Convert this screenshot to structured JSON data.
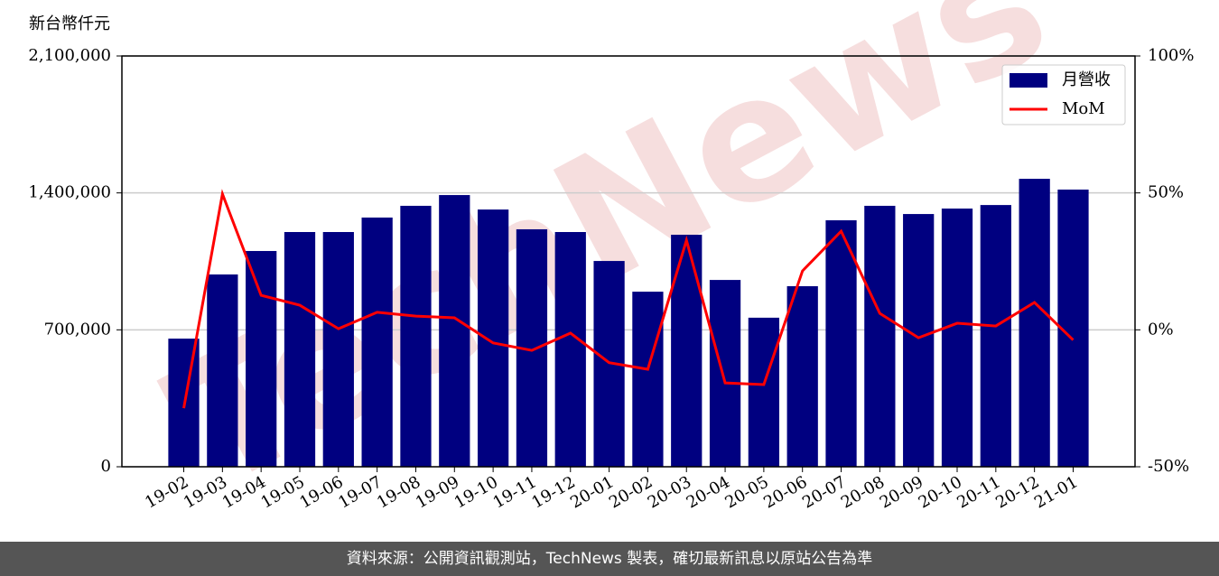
{
  "chart_data": {
    "type": "bar",
    "y_label": "新台幣仟元",
    "watermark": "TechNews",
    "source": "資料來源：公開資訊觀測站，TechNews 製表，確切最新訊息以原站公告為準",
    "categories": [
      "19-02",
      "19-03",
      "19-04",
      "19-05",
      "19-06",
      "19-07",
      "19-08",
      "19-09",
      "19-10",
      "19-11",
      "19-12",
      "20-01",
      "20-02",
      "20-03",
      "20-04",
      "20-05",
      "20-06",
      "20-07",
      "20-08",
      "20-09",
      "20-10",
      "20-11",
      "20-12",
      "21-01"
    ],
    "series": [
      {
        "name": "月營收",
        "type": "bar",
        "color": "#000080",
        "values": [
          655000,
          983000,
          1103000,
          1200000,
          1200000,
          1274000,
          1334000,
          1389000,
          1315000,
          1214000,
          1200000,
          1052000,
          895000,
          1186000,
          955000,
          762000,
          923000,
          1260000,
          1334000,
          1292000,
          1320000,
          1338000,
          1472000,
          1417000
        ]
      },
      {
        "name": "MoM",
        "type": "line",
        "color": "#ff0000",
        "axis": "y2",
        "values": [
          -28.6,
          49.6,
          12.6,
          9,
          0.4,
          6.4,
          5,
          4.4,
          -4.8,
          -7.5,
          -1.2,
          -12,
          -14.4,
          32.7,
          -19.4,
          -20,
          21.5,
          36,
          6,
          -2.9,
          2.4,
          1.4,
          10,
          -3.7
        ]
      }
    ],
    "ylim": [
      0,
      2100000
    ],
    "yticks": [
      0,
      {
        "value": 700000,
        "label": "700,000"
      },
      {
        "value": 1400000,
        "label": "1,400,000"
      },
      {
        "value": 2100000,
        "label": "2,100,000"
      }
    ],
    "y2lim": [
      -50,
      100
    ],
    "y2ticks": [
      {
        "value": -50,
        "label": "-50%"
      },
      {
        "value": 0,
        "label": "0%"
      },
      {
        "value": 50,
        "label": "50%"
      },
      {
        "value": 100,
        "label": "100%"
      }
    ],
    "grid": true,
    "legend": "upper right"
  }
}
